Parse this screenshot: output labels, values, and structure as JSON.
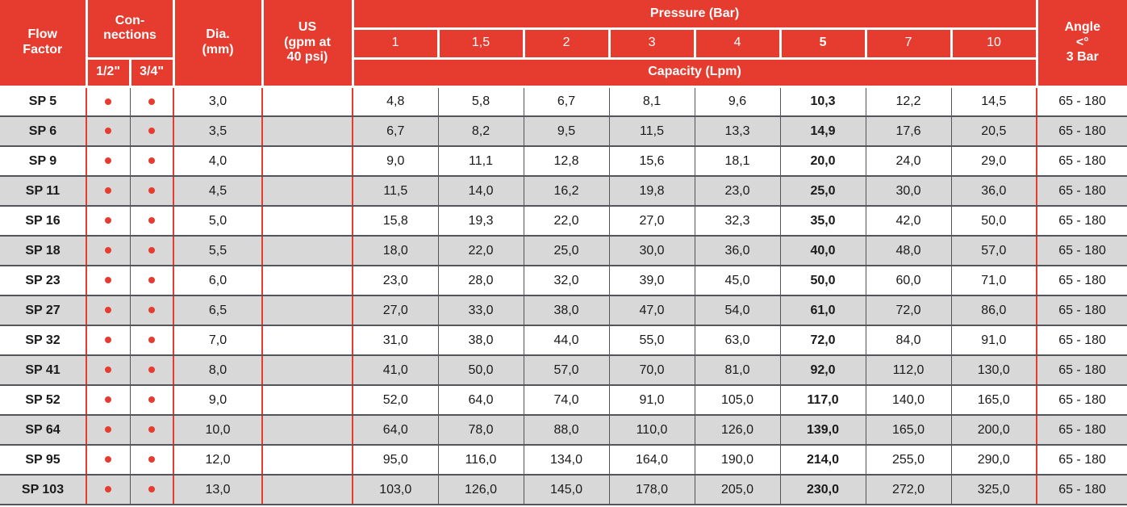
{
  "colors": {
    "accent_red": "#e63b2f",
    "row_alt": "#d8d8d8",
    "grid_line": "#54555a",
    "text": "#1a1a1a"
  },
  "header": {
    "flow_factor": "Flow\nFactor",
    "connections": "Con-\nnections",
    "connection_half": "1/2\"",
    "connection_three_quarter": "3/4\"",
    "dia": "Dia.\n(mm)",
    "us": "US\n(gpm at\n40 psi)",
    "pressure": "Pressure (Bar)",
    "pressure_values": [
      "1",
      "1,5",
      "2",
      "3",
      "4",
      "5",
      "7",
      "10"
    ],
    "capacity": "Capacity (Lpm)",
    "angle": "Angle\n<°\n3 Bar"
  },
  "rows": [
    {
      "flow_factor": "SP 5",
      "conn_half": true,
      "conn_three_quarter": true,
      "dia": "3,0",
      "us": "",
      "capacities": [
        "4,8",
        "5,8",
        "6,7",
        "8,1",
        "9,6",
        "10,3",
        "12,2",
        "14,5"
      ],
      "angle": "65 - 180"
    },
    {
      "flow_factor": "SP 6",
      "conn_half": true,
      "conn_three_quarter": true,
      "dia": "3,5",
      "us": "",
      "capacities": [
        "6,7",
        "8,2",
        "9,5",
        "11,5",
        "13,3",
        "14,9",
        "17,6",
        "20,5"
      ],
      "angle": "65 - 180"
    },
    {
      "flow_factor": "SP 9",
      "conn_half": true,
      "conn_three_quarter": true,
      "dia": "4,0",
      "us": "",
      "capacities": [
        "9,0",
        "11,1",
        "12,8",
        "15,6",
        "18,1",
        "20,0",
        "24,0",
        "29,0"
      ],
      "angle": "65 - 180"
    },
    {
      "flow_factor": "SP 11",
      "conn_half": true,
      "conn_three_quarter": true,
      "dia": "4,5",
      "us": "",
      "capacities": [
        "11,5",
        "14,0",
        "16,2",
        "19,8",
        "23,0",
        "25,0",
        "30,0",
        "36,0"
      ],
      "angle": "65 - 180"
    },
    {
      "flow_factor": "SP 16",
      "conn_half": true,
      "conn_three_quarter": true,
      "dia": "5,0",
      "us": "",
      "capacities": [
        "15,8",
        "19,3",
        "22,0",
        "27,0",
        "32,3",
        "35,0",
        "42,0",
        "50,0"
      ],
      "angle": "65 - 180"
    },
    {
      "flow_factor": "SP 18",
      "conn_half": true,
      "conn_three_quarter": true,
      "dia": "5,5",
      "us": "",
      "capacities": [
        "18,0",
        "22,0",
        "25,0",
        "30,0",
        "36,0",
        "40,0",
        "48,0",
        "57,0"
      ],
      "angle": "65 - 180"
    },
    {
      "flow_factor": "SP 23",
      "conn_half": true,
      "conn_three_quarter": true,
      "dia": "6,0",
      "us": "",
      "capacities": [
        "23,0",
        "28,0",
        "32,0",
        "39,0",
        "45,0",
        "50,0",
        "60,0",
        "71,0"
      ],
      "angle": "65 - 180"
    },
    {
      "flow_factor": "SP 27",
      "conn_half": true,
      "conn_three_quarter": true,
      "dia": "6,5",
      "us": "",
      "capacities": [
        "27,0",
        "33,0",
        "38,0",
        "47,0",
        "54,0",
        "61,0",
        "72,0",
        "86,0"
      ],
      "angle": "65 - 180"
    },
    {
      "flow_factor": "SP 32",
      "conn_half": true,
      "conn_three_quarter": true,
      "dia": "7,0",
      "us": "",
      "capacities": [
        "31,0",
        "38,0",
        "44,0",
        "55,0",
        "63,0",
        "72,0",
        "84,0",
        "91,0"
      ],
      "angle": "65 - 180"
    },
    {
      "flow_factor": "SP 41",
      "conn_half": true,
      "conn_three_quarter": true,
      "dia": "8,0",
      "us": "",
      "capacities": [
        "41,0",
        "50,0",
        "57,0",
        "70,0",
        "81,0",
        "92,0",
        "112,0",
        "130,0"
      ],
      "angle": "65 - 180"
    },
    {
      "flow_factor": "SP 52",
      "conn_half": true,
      "conn_three_quarter": true,
      "dia": "9,0",
      "us": "",
      "capacities": [
        "52,0",
        "64,0",
        "74,0",
        "91,0",
        "105,0",
        "117,0",
        "140,0",
        "165,0"
      ],
      "angle": "65 - 180"
    },
    {
      "flow_factor": "SP 64",
      "conn_half": true,
      "conn_three_quarter": true,
      "dia": "10,0",
      "us": "",
      "capacities": [
        "64,0",
        "78,0",
        "88,0",
        "110,0",
        "126,0",
        "139,0",
        "165,0",
        "200,0"
      ],
      "angle": "65 - 180"
    },
    {
      "flow_factor": "SP 95",
      "conn_half": true,
      "conn_three_quarter": true,
      "dia": "12,0",
      "us": "",
      "capacities": [
        "95,0",
        "116,0",
        "134,0",
        "164,0",
        "190,0",
        "214,0",
        "255,0",
        "290,0"
      ],
      "angle": "65 - 180"
    },
    {
      "flow_factor": "SP 103",
      "conn_half": true,
      "conn_three_quarter": true,
      "dia": "13,0",
      "us": "",
      "capacities": [
        "103,0",
        "126,0",
        "145,0",
        "178,0",
        "205,0",
        "230,0",
        "272,0",
        "325,0"
      ],
      "angle": "65 - 180"
    }
  ]
}
